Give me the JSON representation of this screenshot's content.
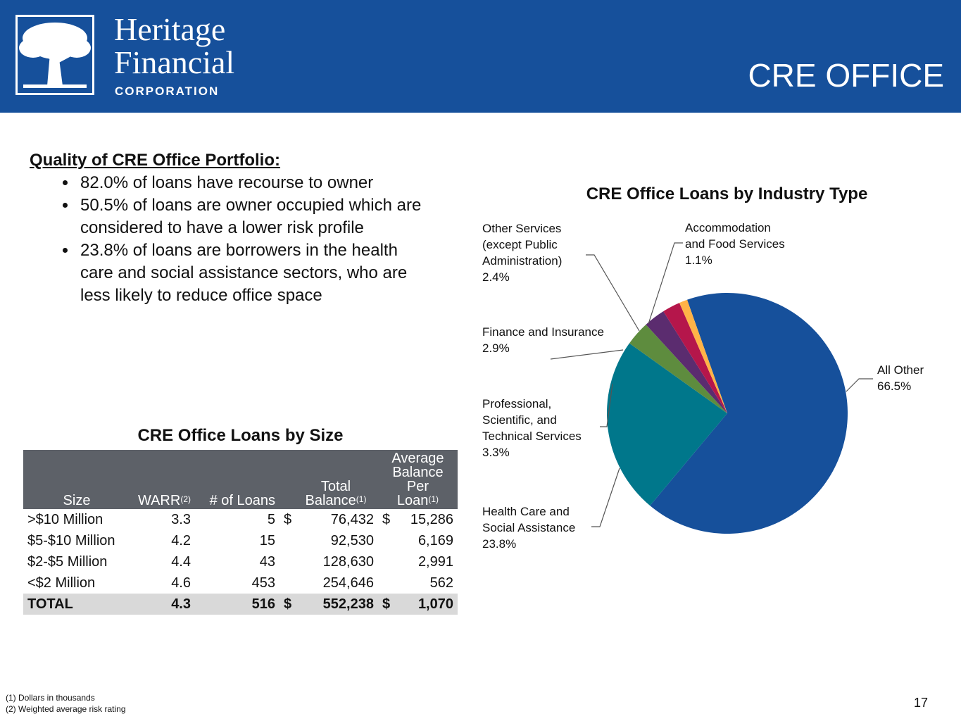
{
  "header": {
    "logo_name_line1": "Heritage",
    "logo_name_line2": "Financial",
    "logo_sub": "CORPORATION",
    "title": "CRE OFFICE"
  },
  "quality": {
    "heading": "Quality of CRE Office Portfolio:",
    "bullets": [
      "82.0% of loans have recourse to owner",
      "50.5% of loans are owner occupied which are considered to have a lower risk profile",
      "23.8% of loans are borrowers in the health care and social assistance sectors, who are less likely to reduce office space"
    ]
  },
  "colors": {
    "header_bg": "#16509b",
    "table_header_bg": "#5d6168",
    "total_row_bg": "#d9d9d9"
  },
  "chart_data": [
    {
      "type": "table",
      "title": "CRE Office Loans by Size",
      "columns": [
        "Size",
        "WARR",
        "# of Loans",
        "Total Balance",
        "Average Balance Per Loan"
      ],
      "column_superscripts": [
        "",
        "(2)",
        "",
        "(1)",
        "(1)"
      ],
      "header_lines": {
        "total": [
          "Total",
          "Balance"
        ],
        "avg": [
          "Average",
          "Balance Per",
          "Loan"
        ]
      },
      "rows": [
        {
          "size": ">$10 Million",
          "warr": "3.3",
          "loans": "5",
          "dollar1": "$",
          "total": "76,432",
          "dollar2": "$",
          "avg": "15,286"
        },
        {
          "size": "$5-$10 Million",
          "warr": "4.2",
          "loans": "15",
          "dollar1": "",
          "total": "92,530",
          "dollar2": "",
          "avg": "6,169"
        },
        {
          "size": "$2-$5 Million",
          "warr": "4.4",
          "loans": "43",
          "dollar1": "",
          "total": "128,630",
          "dollar2": "",
          "avg": "2,991"
        },
        {
          "size": "<$2 Million",
          "warr": "4.6",
          "loans": "453",
          "dollar1": "",
          "total": "254,646",
          "dollar2": "",
          "avg": "562"
        }
      ],
      "total_row": {
        "size": "TOTAL",
        "warr": "4.3",
        "loans": "516",
        "dollar1": "$",
        "total": "552,238",
        "dollar2": "$",
        "avg": "1,070"
      }
    },
    {
      "type": "pie",
      "title": "CRE Office Loans by Industry Type",
      "slices": [
        {
          "label_lines": [
            "All Other"
          ],
          "pct_text": "66.5%",
          "value": 66.5,
          "color": "#16509b"
        },
        {
          "label_lines": [
            "Health Care and",
            "Social Assistance"
          ],
          "pct_text": "23.8%",
          "value": 23.8,
          "color": "#00778b"
        },
        {
          "label_lines": [
            "Professional,",
            "Scientific, and",
            "Technical Services"
          ],
          "pct_text": "3.3%",
          "value": 3.3,
          "color": "#5e8c3e"
        },
        {
          "label_lines": [
            "Finance and Insurance"
          ],
          "pct_text": "2.9%",
          "value": 2.9,
          "color": "#5b2c6f"
        },
        {
          "label_lines": [
            "Other Services",
            "(except Public",
            "Administration)"
          ],
          "pct_text": "2.4%",
          "value": 2.4,
          "color": "#b5164b"
        },
        {
          "label_lines": [
            "Accommodation",
            "and Food Services"
          ],
          "pct_text": "1.1%",
          "value": 1.1,
          "color": "#ffb347"
        }
      ]
    }
  ],
  "footnotes": [
    "(1) Dollars in thousands",
    "(2) Weighted average risk rating"
  ],
  "page_number": "17"
}
